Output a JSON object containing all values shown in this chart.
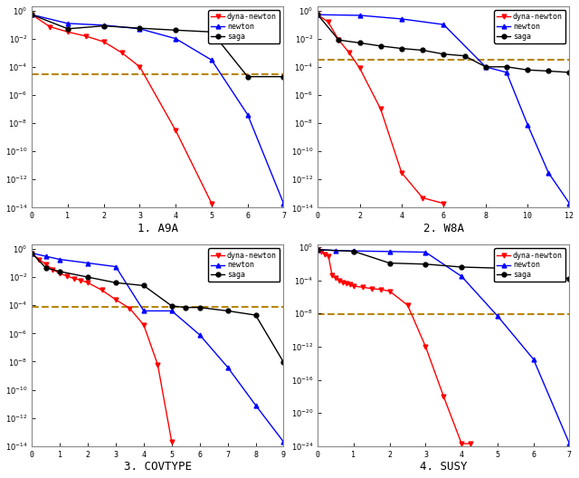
{
  "colors": {
    "dyna_newton": "#ff0000",
    "newton": "#0000ff",
    "saga": "#000000",
    "dashed": "#b8860b"
  },
  "plots": [
    {
      "title": "1. A9A",
      "xlim": [
        0,
        7
      ],
      "xticks": [
        0,
        1,
        2,
        3,
        4,
        5,
        6,
        7
      ],
      "ylim": [
        1e-14,
        2
      ],
      "ytick_exps": [
        0,
        -2,
        -4,
        -6,
        -8,
        -10,
        -12,
        -14
      ],
      "dashed_y": 3e-05,
      "dyna_x": [
        0,
        0.5,
        1,
        1.5,
        2,
        2.5,
        3,
        4,
        5
      ],
      "dyna_y": [
        0.5,
        0.07,
        0.03,
        0.015,
        0.006,
        0.001,
        0.0001,
        3e-09,
        2e-14
      ],
      "newt_x": [
        0,
        1,
        2,
        3,
        4,
        5,
        6,
        7
      ],
      "newt_y": [
        0.5,
        0.12,
        0.09,
        0.05,
        0.01,
        0.0003,
        4e-08,
        2e-14
      ],
      "saga_x": [
        0,
        1,
        2,
        3,
        4,
        5,
        6,
        7
      ],
      "saga_y": [
        0.5,
        0.05,
        0.08,
        0.055,
        0.04,
        0.03,
        2e-05,
        2e-05
      ]
    },
    {
      "title": "2. W8A",
      "xlim": [
        0,
        12
      ],
      "xticks": [
        0,
        2,
        4,
        6,
        8,
        10,
        12
      ],
      "ylim": [
        1e-14,
        2
      ],
      "ytick_exps": [
        0,
        -2,
        -4,
        -6,
        -8,
        -10,
        -12,
        -14
      ],
      "dashed_y": 0.0003,
      "dyna_x": [
        0,
        0.5,
        1,
        1.5,
        2,
        3,
        4,
        5,
        6
      ],
      "dyna_y": [
        0.5,
        0.15,
        0.008,
        0.001,
        8e-05,
        1e-07,
        3e-12,
        5e-14,
        2e-14
      ],
      "newt_x": [
        0,
        2,
        4,
        6,
        8,
        9,
        10,
        11,
        12
      ],
      "newt_y": [
        0.5,
        0.45,
        0.25,
        0.1,
        0.0001,
        4e-05,
        8e-09,
        3e-12,
        2e-14
      ],
      "saga_x": [
        0,
        1,
        2,
        3,
        4,
        5,
        6,
        7,
        8,
        9,
        10,
        11,
        12
      ],
      "saga_y": [
        0.5,
        0.008,
        0.005,
        0.003,
        0.002,
        0.0015,
        0.0008,
        0.0006,
        0.0001,
        0.0001,
        6e-05,
        5e-05,
        4e-05
      ]
    },
    {
      "title": "3. COVTYPE",
      "xlim": [
        0,
        9
      ],
      "xticks": [
        0,
        1,
        2,
        3,
        4,
        5,
        6,
        7,
        8,
        9
      ],
      "ylim": [
        1e-14,
        2
      ],
      "ytick_exps": [
        0,
        -2,
        -4,
        -6,
        -8,
        -10,
        -12,
        -14
      ],
      "dashed_y": 8e-05,
      "dyna_x": [
        0,
        0.25,
        0.5,
        0.75,
        1,
        1.25,
        1.5,
        1.75,
        2,
        2.5,
        3,
        3.5,
        4,
        4.5,
        5
      ],
      "dyna_y": [
        0.5,
        0.18,
        0.08,
        0.035,
        0.018,
        0.012,
        0.008,
        0.006,
        0.004,
        0.0012,
        0.00025,
        6e-05,
        4e-06,
        6e-09,
        2e-14
      ],
      "newt_x": [
        0,
        0.5,
        1,
        2,
        3,
        4,
        5,
        6,
        7,
        8,
        9
      ],
      "newt_y": [
        0.5,
        0.3,
        0.18,
        0.1,
        0.055,
        4e-05,
        4e-05,
        8e-07,
        4e-09,
        8e-12,
        2e-14
      ],
      "saga_x": [
        0,
        0.5,
        1,
        2,
        3,
        4,
        5,
        5.5,
        6,
        7,
        8,
        9
      ],
      "saga_y": [
        0.5,
        0.045,
        0.025,
        0.01,
        0.004,
        0.0025,
        9e-05,
        7e-05,
        7e-05,
        4e-05,
        2e-05,
        9e-09
      ]
    },
    {
      "title": "4. SUSY",
      "xlim": [
        0,
        7
      ],
      "xticks": [
        0,
        1,
        2,
        3,
        4,
        5,
        6,
        7
      ],
      "ylim": [
        1e-24,
        2
      ],
      "ytick_exps": [
        0,
        -4,
        -8,
        -12,
        -16,
        -20,
        -24
      ],
      "dashed_y": 8e-09,
      "dyna_x": [
        0,
        0.1,
        0.2,
        0.3,
        0.4,
        0.5,
        0.6,
        0.7,
        0.8,
        0.9,
        1,
        1.25,
        1.5,
        1.75,
        2,
        2.5,
        3,
        3.5,
        4,
        4.25
      ],
      "dyna_y": [
        0.5,
        0.3,
        0.15,
        0.08,
        0.0004,
        0.0002,
        0.0001,
        6e-05,
        4e-05,
        3e-05,
        2e-05,
        1.5e-05,
        1e-05,
        8e-06,
        5e-06,
        1e-07,
        1e-12,
        1e-18,
        2e-24,
        2e-24
      ],
      "newt_x": [
        0,
        0.5,
        1,
        2,
        3,
        4,
        5,
        6,
        7
      ],
      "newt_y": [
        0.5,
        0.4,
        0.35,
        0.3,
        0.25,
        0.0003,
        5e-09,
        3e-14,
        2e-24
      ],
      "saga_x": [
        0,
        1,
        2,
        3,
        4,
        5,
        6,
        7
      ],
      "saga_y": [
        0.5,
        0.32,
        0.012,
        0.009,
        0.004,
        0.003,
        0.002,
        0.00015
      ]
    }
  ]
}
